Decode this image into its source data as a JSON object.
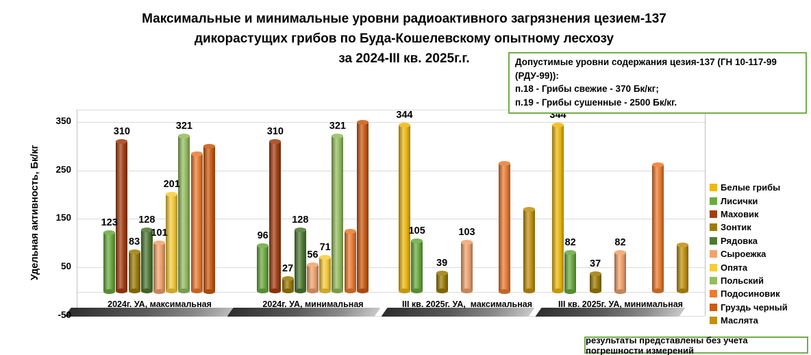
{
  "title": {
    "line1": "Максимальные и минимальные уровни радиоактивного загрязнения цезием-137",
    "line2": "дикорастущих грибов по Буда-Кошелевскому опытному лесхозу",
    "line3": "за 2024-III кв. 2025г.г."
  },
  "info_box": {
    "line1": "Допустимые уровни содержания цезия-137 (ГН 10-117-99 (РДУ-99)):",
    "line2": "п.18 - Грибы свежие - 370 Бк/кг;",
    "line3": "п.19 - Грибы сушенные - 2500 Бк/кг."
  },
  "footnote": "результаты представлены без учета погрешности измерений",
  "chart_data": {
    "type": "bar",
    "subtype": "3d-cylinder",
    "title": "Максимальные и минимальные уровни радиоактивного загрязнения цезием-137 дикорастущих грибов по Буда-Кошелевскому опытному лесхозу за 2024-III кв. 2025г.г.",
    "ylabel": "Удельная активность, Бк/кг",
    "xlabel": "",
    "yticks": [
      350,
      250,
      150,
      50,
      -50
    ],
    "ylim": [
      -50,
      370
    ],
    "grid": true,
    "legend_position": "right",
    "categories": [
      "2024г. УА, максимальная",
      "2024г. УА, минимальная",
      "III кв. 2025г. УА,  максимальная",
      "III кв. 2025г. УА, минимальная"
    ],
    "series": [
      {
        "name": "Белые грибы",
        "color": "#EFB90F",
        "values": [
          null,
          null,
          344,
          344
        ],
        "labeled": true
      },
      {
        "name": "Лисички",
        "color": "#6AAB3F",
        "values": [
          123,
          96,
          105,
          82
        ],
        "labeled": true
      },
      {
        "name": "Маховик",
        "color": "#A33E12",
        "values": [
          310,
          310,
          null,
          null
        ],
        "labeled": true
      },
      {
        "name": "Зонтик",
        "color": "#9C7C06",
        "values": [
          83,
          27,
          39,
          37
        ],
        "labeled": true
      },
      {
        "name": "Рядовка",
        "color": "#4E7A31",
        "values": [
          128,
          128,
          null,
          null
        ],
        "labeled": true
      },
      {
        "name": "Сыроежка",
        "color": "#F2A36C",
        "values": [
          101,
          56,
          103,
          82
        ],
        "labeled": true
      },
      {
        "name": "Опята",
        "color": "#F7CD3B",
        "values": [
          201,
          71,
          null,
          null
        ],
        "labeled": true
      },
      {
        "name": "Польский",
        "color": "#95BD60",
        "values": [
          321,
          321,
          null,
          null
        ],
        "labeled": true
      },
      {
        "name": "Подосиновик",
        "color": "#EC7C30",
        "values": [
          285,
          125,
          265,
          262
        ],
        "labeled": false
      },
      {
        "name": "Груздь черный",
        "color": "#CC5A12",
        "values": [
          300,
          350,
          null,
          null
        ],
        "labeled": false
      },
      {
        "name": "Маслята",
        "color": "#C29110",
        "values": [
          null,
          null,
          170,
          97
        ],
        "labeled": false
      }
    ]
  }
}
